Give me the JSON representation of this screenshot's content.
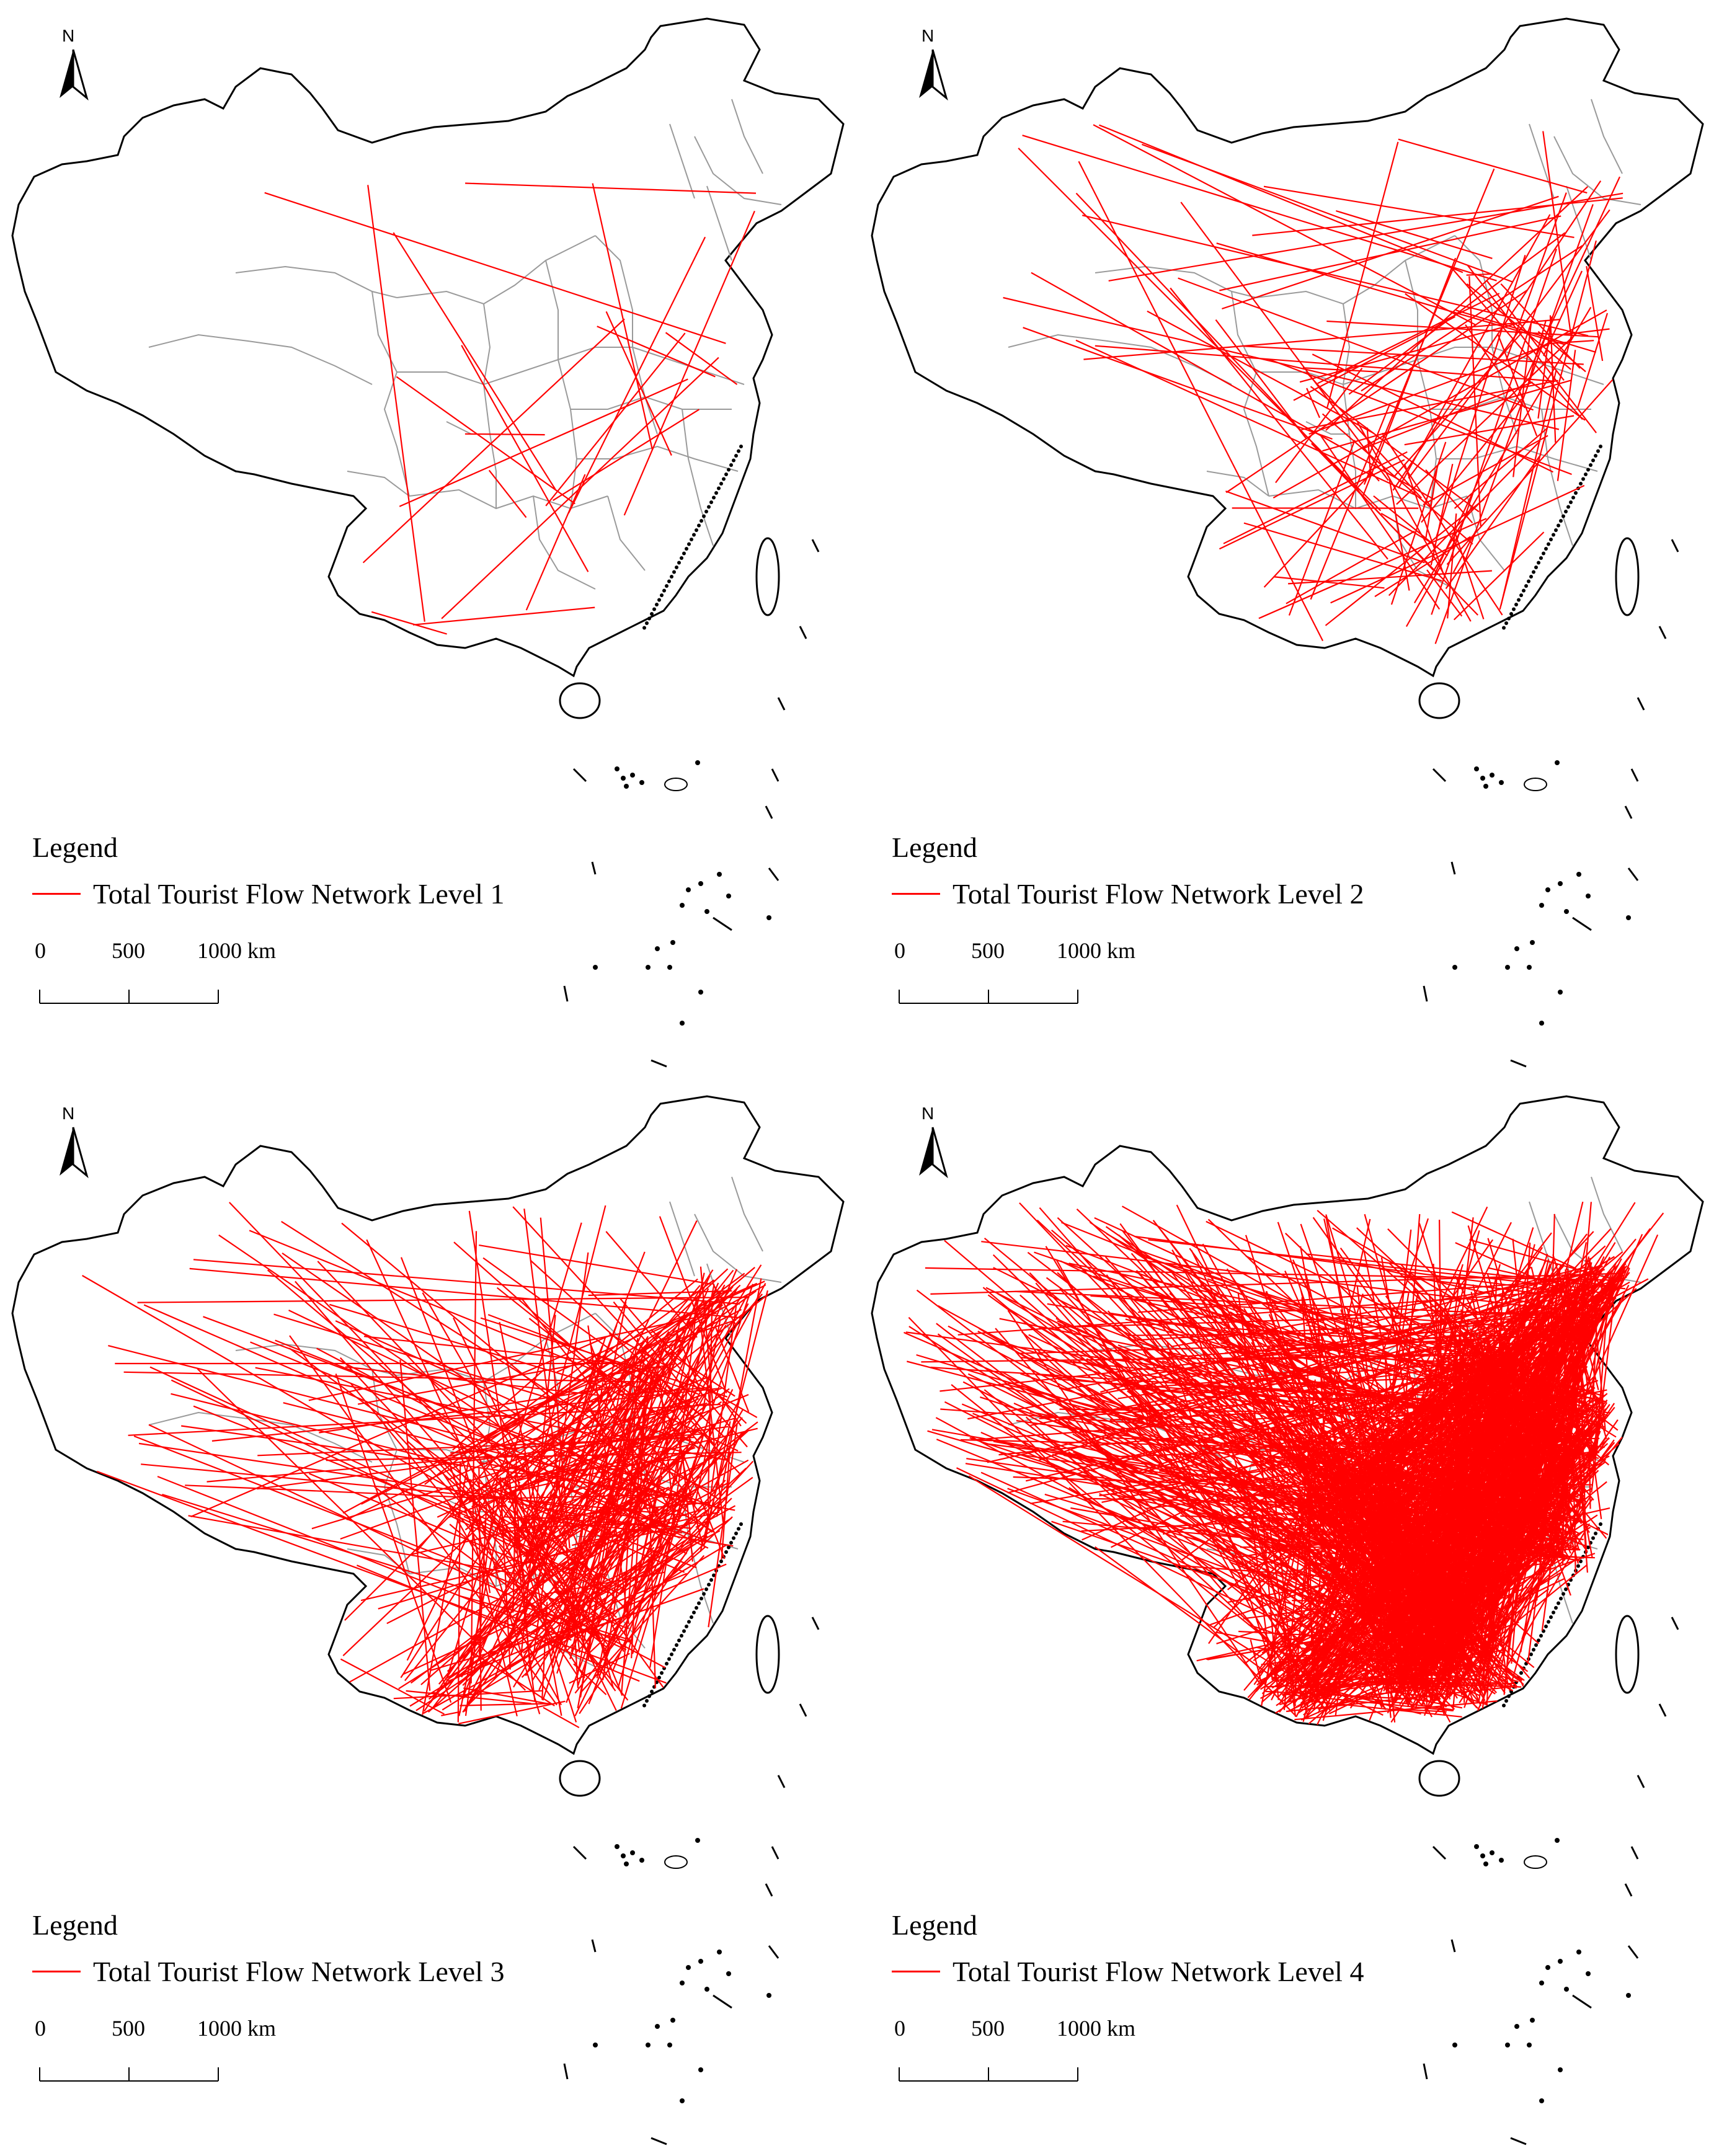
{
  "panels": [
    {
      "legend_title": "Legend",
      "legend_entry": "Total Tourist Flow Network Level 1",
      "north_label": "N",
      "scale": {
        "tick_0": "0",
        "tick_1": "500",
        "tick_2": "1000 km"
      },
      "line_color": "#ff0000",
      "flow_count": 22,
      "spread": 0.55
    },
    {
      "legend_title": "Legend",
      "legend_entry": "Total Tourist Flow Network Level 2",
      "north_label": "N",
      "scale": {
        "tick_0": "0",
        "tick_1": "500",
        "tick_2": "1000 km"
      },
      "line_color": "#ff0000",
      "flow_count": 130,
      "spread": 0.75
    },
    {
      "legend_title": "Legend",
      "legend_entry": "Total Tourist Flow Network Level 3",
      "north_label": "N",
      "scale": {
        "tick_0": "0",
        "tick_1": "500",
        "tick_2": "1000 km"
      },
      "line_color": "#ff0000",
      "flow_count": 420,
      "spread": 0.9
    },
    {
      "legend_title": "Legend",
      "legend_entry": "Total Tourist Flow Network Level 4",
      "north_label": "N",
      "scale": {
        "tick_0": "0",
        "tick_1": "500",
        "tick_2": "1000 km"
      },
      "line_color": "#ff0000",
      "flow_count": 1600,
      "spread": 1.0
    }
  ]
}
